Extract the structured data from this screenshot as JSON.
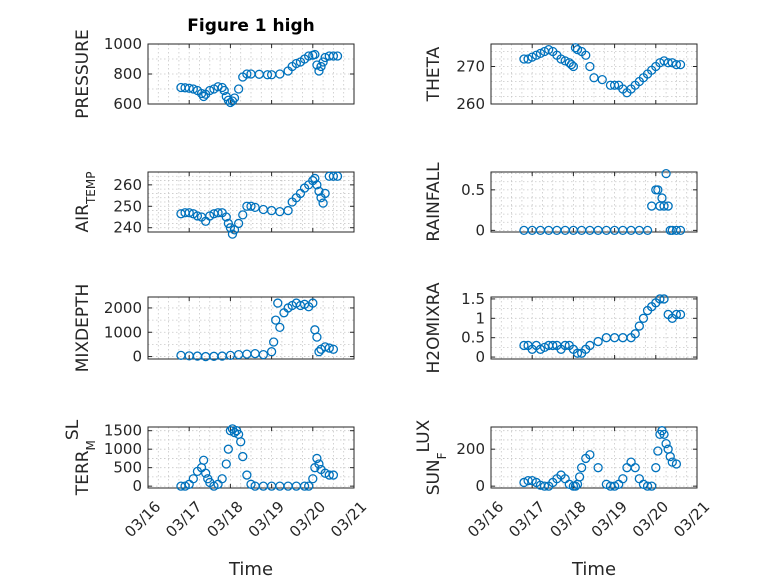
{
  "figure": {
    "title": "Figure 1 high",
    "xlabel": "Time"
  },
  "x_ticks": [
    "03/16",
    "03/17",
    "03/18",
    "03/19",
    "03/20",
    "03/21"
  ],
  "x_tick_values": [
    16,
    17,
    18,
    19,
    20,
    21
  ],
  "colors": {
    "marker": "#0072BD",
    "axis": "#262626",
    "grid": "#c8c8c8"
  },
  "chart_data": [
    {
      "type": "scatter",
      "title": "Figure 1 high",
      "ylabel": "PRESSURE",
      "ylabel_sub": "",
      "xlim": [
        16,
        21
      ],
      "ylim": [
        600,
        1000
      ],
      "yticks": [
        600,
        800,
        1000
      ],
      "ytick_labels": [
        "600",
        "800",
        "1000"
      ],
      "minor_step": 100,
      "x": [
        16.8,
        16.9,
        17.0,
        17.1,
        17.2,
        17.3,
        17.35,
        17.4,
        17.5,
        17.6,
        17.7,
        17.8,
        17.85,
        17.9,
        17.95,
        18.0,
        18.05,
        18.1,
        18.2,
        18.3,
        18.4,
        18.5,
        18.7,
        18.9,
        19.0,
        19.2,
        19.4,
        19.5,
        19.6,
        19.7,
        19.8,
        19.9,
        20.0,
        20.05,
        20.1,
        20.15,
        20.2,
        20.25,
        20.3,
        20.4,
        20.5,
        20.6
      ],
      "y": [
        710,
        708,
        705,
        700,
        690,
        670,
        650,
        665,
        690,
        700,
        715,
        710,
        690,
        650,
        625,
        610,
        620,
        640,
        700,
        780,
        800,
        800,
        798,
        795,
        795,
        800,
        820,
        850,
        870,
        880,
        900,
        920,
        925,
        930,
        860,
        820,
        850,
        880,
        910,
        920,
        920,
        920
      ]
    },
    {
      "type": "scatter",
      "title": "",
      "ylabel": "THETA",
      "ylabel_sub": "",
      "xlim": [
        16,
        21
      ],
      "ylim": [
        260,
        276
      ],
      "yticks": [
        260,
        270
      ],
      "ytick_labels": [
        "260",
        "270"
      ],
      "minor_step": 2,
      "x": [
        16.8,
        16.9,
        17.0,
        17.1,
        17.2,
        17.3,
        17.4,
        17.5,
        17.6,
        17.7,
        17.8,
        17.9,
        17.95,
        18.0,
        18.05,
        18.1,
        18.2,
        18.3,
        18.4,
        18.5,
        18.7,
        18.9,
        19.0,
        19.1,
        19.2,
        19.3,
        19.4,
        19.5,
        19.6,
        19.7,
        19.8,
        19.9,
        20.0,
        20.1,
        20.2,
        20.3,
        20.4,
        20.5,
        20.6
      ],
      "y": [
        272,
        272,
        272.5,
        273,
        273.5,
        274,
        274.5,
        274,
        273,
        272,
        271.5,
        271,
        270.5,
        270,
        275,
        274.5,
        274,
        273,
        270,
        267,
        266.5,
        265,
        265,
        265,
        264,
        263,
        264,
        265,
        266,
        267,
        268,
        269,
        270,
        271,
        271.5,
        271,
        271,
        270.5,
        270.5
      ]
    },
    {
      "type": "scatter",
      "title": "",
      "ylabel": "AIR",
      "ylabel_sub": "TEMP",
      "xlim": [
        16,
        21
      ],
      "ylim": [
        238,
        266
      ],
      "yticks": [
        240,
        250,
        260
      ],
      "ytick_labels": [
        "240",
        "250",
        "260"
      ],
      "minor_step": 2,
      "x": [
        16.8,
        16.9,
        17.0,
        17.1,
        17.2,
        17.3,
        17.4,
        17.5,
        17.6,
        17.7,
        17.8,
        17.9,
        17.95,
        18.0,
        18.05,
        18.1,
        18.2,
        18.3,
        18.4,
        18.5,
        18.6,
        18.8,
        19.0,
        19.2,
        19.4,
        19.5,
        19.6,
        19.7,
        19.8,
        19.9,
        20.0,
        20.05,
        20.1,
        20.15,
        20.2,
        20.25,
        20.3,
        20.4,
        20.5,
        20.6
      ],
      "y": [
        246.5,
        247,
        247,
        246.5,
        245.5,
        245,
        243,
        245.5,
        246.5,
        247,
        247,
        245,
        242,
        240,
        237,
        239,
        242,
        246,
        250,
        250,
        249.5,
        248.5,
        248,
        247.5,
        248,
        252,
        254,
        256,
        258.5,
        260,
        262,
        263,
        260,
        257,
        254,
        251.5,
        256,
        264,
        264,
        264
      ]
    },
    {
      "type": "scatter",
      "title": "",
      "ylabel": "RAINFALL",
      "ylabel_sub": "",
      "xlim": [
        16,
        21
      ],
      "ylim": [
        -0.02,
        0.72
      ],
      "yticks": [
        0,
        0.5
      ],
      "ytick_labels": [
        "0",
        "0.5"
      ],
      "minor_step": 0.1,
      "x": [
        16.8,
        17.0,
        17.2,
        17.4,
        17.6,
        17.8,
        18.0,
        18.2,
        18.4,
        18.6,
        18.8,
        19.0,
        19.2,
        19.4,
        19.6,
        19.8,
        19.9,
        20.0,
        20.05,
        20.1,
        20.15,
        20.2,
        20.25,
        20.3,
        20.35,
        20.4,
        20.5,
        20.6
      ],
      "y": [
        0,
        0,
        0,
        0,
        0,
        0,
        0,
        0,
        0,
        0,
        0,
        0,
        0,
        0,
        0,
        0,
        0.3,
        0.5,
        0.5,
        0.3,
        0.4,
        0.3,
        0.7,
        0.3,
        0,
        0,
        0,
        0
      ]
    },
    {
      "type": "scatter",
      "title": "",
      "ylabel": "MIXDEPTH",
      "ylabel_sub": "",
      "xlim": [
        16,
        21
      ],
      "ylim": [
        -100,
        2450
      ],
      "yticks": [
        0,
        1000,
        2000
      ],
      "ytick_labels": [
        "0",
        "1000",
        "2000"
      ],
      "minor_step": 500,
      "x": [
        16.8,
        17.0,
        17.2,
        17.4,
        17.6,
        17.8,
        18.0,
        18.2,
        18.4,
        18.6,
        18.8,
        19.0,
        19.05,
        19.1,
        19.15,
        19.2,
        19.3,
        19.4,
        19.5,
        19.6,
        19.7,
        19.8,
        19.9,
        20.0,
        20.05,
        20.1,
        20.15,
        20.2,
        20.3,
        20.4,
        20.5
      ],
      "y": [
        50,
        30,
        20,
        0,
        10,
        20,
        50,
        80,
        100,
        120,
        80,
        200,
        600,
        1500,
        2200,
        1200,
        1800,
        2000,
        2100,
        2200,
        2100,
        2150,
        2050,
        2200,
        1100,
        800,
        200,
        300,
        400,
        350,
        300
      ]
    },
    {
      "type": "scatter",
      "title": "",
      "ylabel": "H2OMIXRA",
      "ylabel_sub": "",
      "xlim": [
        16,
        21
      ],
      "ylim": [
        -0.05,
        1.55
      ],
      "yticks": [
        0,
        0.5,
        1,
        1.5
      ],
      "ytick_labels": [
        "0",
        "0.5",
        "1",
        "1.5"
      ],
      "minor_step": 0.25,
      "x": [
        16.8,
        16.9,
        17.0,
        17.1,
        17.2,
        17.3,
        17.4,
        17.5,
        17.6,
        17.7,
        17.8,
        17.9,
        18.0,
        18.1,
        18.2,
        18.3,
        18.4,
        18.6,
        18.8,
        19.0,
        19.2,
        19.4,
        19.5,
        19.6,
        19.7,
        19.8,
        19.9,
        20.0,
        20.1,
        20.2,
        20.3,
        20.4,
        20.5,
        20.6
      ],
      "y": [
        0.3,
        0.3,
        0.2,
        0.3,
        0.2,
        0.25,
        0.3,
        0.3,
        0.3,
        0.2,
        0.3,
        0.3,
        0.2,
        0.1,
        0.1,
        0.2,
        0.3,
        0.4,
        0.5,
        0.5,
        0.5,
        0.5,
        0.6,
        0.8,
        1.0,
        1.2,
        1.3,
        1.4,
        1.5,
        1.5,
        1.1,
        1.0,
        1.1,
        1.1
      ]
    },
    {
      "type": "scatter",
      "title": "",
      "ylabel": "TERR",
      "ylabel_sub": "M",
      "ylabel_suffix": "SL",
      "xlim": [
        16,
        21
      ],
      "ylim": [
        -50,
        1600
      ],
      "yticks": [
        0,
        500,
        1000,
        1500
      ],
      "ytick_labels": [
        "0",
        "500",
        "1000",
        "1500"
      ],
      "minor_step": 250,
      "x": [
        16.8,
        16.9,
        17.0,
        17.1,
        17.2,
        17.3,
        17.35,
        17.4,
        17.45,
        17.5,
        17.6,
        17.7,
        17.8,
        17.9,
        17.95,
        18.0,
        18.05,
        18.1,
        18.15,
        18.2,
        18.25,
        18.3,
        18.4,
        18.5,
        18.6,
        18.8,
        19.0,
        19.2,
        19.4,
        19.6,
        19.8,
        19.9,
        20.0,
        20.05,
        20.1,
        20.15,
        20.2,
        20.3,
        20.4,
        20.5
      ],
      "y": [
        0,
        0,
        50,
        200,
        400,
        500,
        700,
        350,
        200,
        100,
        0,
        50,
        200,
        600,
        1000,
        1500,
        1550,
        1450,
        1500,
        1400,
        1200,
        800,
        300,
        50,
        0,
        0,
        0,
        0,
        0,
        0,
        0,
        0,
        200,
        500,
        750,
        600,
        450,
        350,
        300,
        300
      ]
    },
    {
      "type": "scatter",
      "title": "",
      "ylabel": "SUN",
      "ylabel_sub": "F",
      "ylabel_suffix": "LUX",
      "xlim": [
        16,
        21
      ],
      "ylim": [
        -10,
        320
      ],
      "yticks": [
        0,
        200
      ],
      "ytick_labels": [
        "0",
        "200"
      ],
      "minor_step": 50,
      "x": [
        16.8,
        16.9,
        17.0,
        17.1,
        17.2,
        17.3,
        17.4,
        17.5,
        17.6,
        17.7,
        17.8,
        17.9,
        18.0,
        18.05,
        18.1,
        18.15,
        18.2,
        18.3,
        18.4,
        18.6,
        18.8,
        18.9,
        19.0,
        19.1,
        19.2,
        19.3,
        19.4,
        19.5,
        19.6,
        19.7,
        19.8,
        19.9,
        20.0,
        20.05,
        20.1,
        20.15,
        20.2,
        20.25,
        20.3,
        20.35,
        20.4,
        20.5
      ],
      "y": [
        20,
        30,
        30,
        20,
        5,
        0,
        0,
        20,
        40,
        60,
        40,
        10,
        0,
        0,
        10,
        50,
        100,
        150,
        170,
        100,
        10,
        0,
        0,
        10,
        40,
        100,
        130,
        100,
        40,
        10,
        0,
        0,
        100,
        190,
        280,
        300,
        280,
        230,
        200,
        160,
        130,
        120
      ]
    }
  ]
}
